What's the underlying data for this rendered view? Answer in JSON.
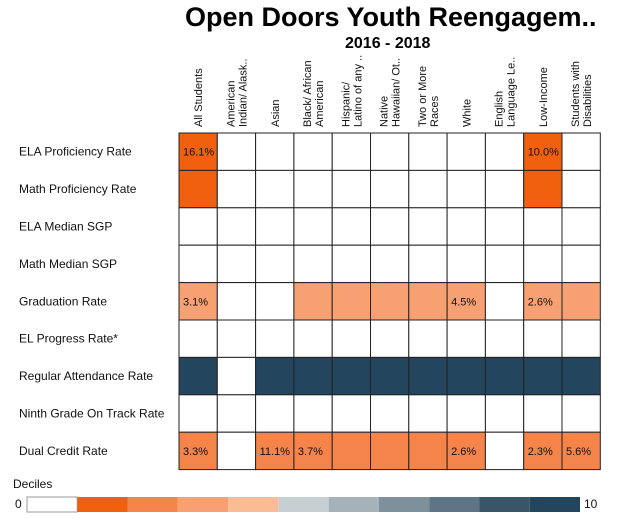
{
  "title": "Open Doors Youth Reengagem..",
  "subtitle": "2016 - 2018",
  "chart_data": {
    "type": "heatmap",
    "columns": [
      [
        "All Students"
      ],
      [
        "American",
        "Indian/ Alask.."
      ],
      [
        "Asian"
      ],
      [
        "Black/ African",
        "American"
      ],
      [
        "Hispanic/",
        "Latino of any .."
      ],
      [
        "Native",
        "Hawaiian/ Ot.."
      ],
      [
        "Two or More",
        "Races"
      ],
      [
        "White"
      ],
      [
        "English",
        "Language Le.."
      ],
      [
        "Low-Income"
      ],
      [
        "Students with",
        "Disabilities"
      ]
    ],
    "rows": [
      "ELA Proficiency Rate",
      "Math Proficiency Rate",
      "ELA Median SGP",
      "Math Median SGP",
      "Graduation Rate",
      "EL Progress Rate*",
      "Regular Attendance Rate",
      "Ninth Grade On Track Rate",
      "Dual Credit Rate"
    ],
    "deciles": [
      [
        1,
        null,
        null,
        null,
        null,
        null,
        null,
        null,
        null,
        1,
        null
      ],
      [
        1,
        null,
        null,
        null,
        null,
        null,
        null,
        null,
        null,
        1,
        null
      ],
      [
        null,
        null,
        null,
        null,
        null,
        null,
        null,
        null,
        null,
        null,
        null
      ],
      [
        null,
        null,
        null,
        null,
        null,
        null,
        null,
        null,
        null,
        null,
        null
      ],
      [
        3,
        null,
        null,
        3,
        3,
        3,
        3,
        3,
        null,
        3,
        3
      ],
      [
        null,
        null,
        null,
        null,
        null,
        null,
        null,
        null,
        null,
        null,
        null
      ],
      [
        10,
        null,
        10,
        10,
        10,
        10,
        10,
        10,
        10,
        10,
        10
      ],
      [
        null,
        null,
        null,
        null,
        null,
        null,
        null,
        null,
        null,
        null,
        null
      ],
      [
        2,
        null,
        2,
        2,
        2,
        2,
        2,
        2,
        null,
        2,
        2
      ]
    ],
    "labels": [
      [
        "16.1%",
        "",
        "",
        "",
        "",
        "",
        "",
        "",
        "",
        "10.0%",
        ""
      ],
      [
        "",
        "",
        "",
        "",
        "",
        "",
        "",
        "",
        "",
        "",
        ""
      ],
      [
        "",
        "",
        "",
        "",
        "",
        "",
        "",
        "",
        "",
        "",
        ""
      ],
      [
        "",
        "",
        "",
        "",
        "",
        "",
        "",
        "",
        "",
        "",
        ""
      ],
      [
        "3.1%",
        "",
        "",
        "",
        "",
        "",
        "",
        "4.5%",
        "",
        "2.6%",
        ""
      ],
      [
        "",
        "",
        "",
        "",
        "",
        "",
        "",
        "",
        "",
        "",
        ""
      ],
      [
        "",
        "",
        "",
        "",
        "",
        "",
        "",
        "",
        "",
        "",
        ""
      ],
      [
        "",
        "",
        "",
        "",
        "",
        "",
        "",
        "",
        "",
        "",
        ""
      ],
      [
        "3.3%",
        "",
        "11.1%",
        "3.7%",
        "",
        "",
        "",
        "2.6%",
        "",
        "2.3%",
        "5.6%"
      ]
    ],
    "legend": {
      "title": "Deciles",
      "min": "0",
      "max": "10",
      "colors": [
        "#ffffff",
        "#f0600f",
        "#f4844a",
        "#f7a072",
        "#fabb97",
        "#c8cfd3",
        "#a6b2ba",
        "#7f909d",
        "#5e7587",
        "#3a5567",
        "#23465e"
      ]
    }
  }
}
